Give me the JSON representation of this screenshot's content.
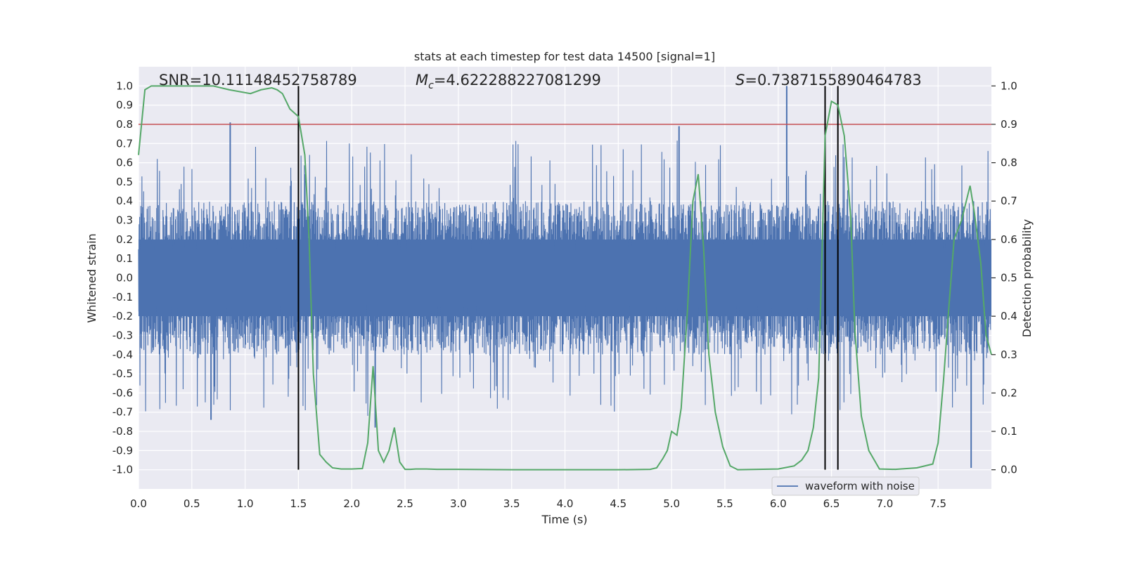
{
  "chart_data": {
    "type": "line",
    "title": "stats at each timestep for test data 14500 [signal=1]",
    "xlabel": "Time (s)",
    "ylabel": "Whitened strain",
    "y2label": "Detection probability",
    "xlim": [
      0.0,
      8.0
    ],
    "ylim": [
      -1.1,
      1.1
    ],
    "y2lim": [
      -0.05,
      1.05
    ],
    "xticks": [
      "0.0",
      "0.5",
      "1.0",
      "1.5",
      "2.0",
      "2.5",
      "3.0",
      "3.5",
      "4.0",
      "4.5",
      "5.0",
      "5.5",
      "6.0",
      "6.5",
      "7.0",
      "7.5"
    ],
    "yticks": [
      "1.0",
      "0.9",
      "0.8",
      "0.7",
      "0.6",
      "0.5",
      "0.4",
      "0.3",
      "0.2",
      "0.1",
      "0.0",
      "-0.1",
      "-0.2",
      "-0.3",
      "-0.4",
      "-0.5",
      "-0.6",
      "-0.7",
      "-0.8",
      "-0.9",
      "-1.0"
    ],
    "y2ticks": [
      "1.0",
      "0.9",
      "0.8",
      "0.7",
      "0.6",
      "0.5",
      "0.4",
      "0.3",
      "0.2",
      "0.1",
      "0.0"
    ],
    "annotations": {
      "snr_text": "SNR=10.11148452758789",
      "mc_symbol": "M",
      "mc_subscript": "c",
      "mc_value": "=4.622288227081299",
      "s_symbol": "S",
      "s_value": "=0.7387155890464783"
    },
    "threshold": {
      "y": 0.8,
      "color": "#c44e52"
    },
    "vertical_lines": [
      1.5,
      6.44,
      6.56
    ],
    "legend": {
      "label": "waveform with noise",
      "location": "lower-right"
    },
    "series": [
      {
        "name": "waveform with noise",
        "axis": "left",
        "color": "#4c72b0",
        "envelope": {
          "typical_upper": 0.4,
          "typical_lower": -0.4,
          "median_extreme": 0.5
        },
        "notable_peaks": [
          {
            "x": 0.86,
            "y": 0.81
          },
          {
            "x": 1.56,
            "y": 0.54
          },
          {
            "x": 5.07,
            "y": 0.79
          },
          {
            "x": 6.08,
            "y": 1.0
          },
          {
            "x": 0.68,
            "y": -0.74
          },
          {
            "x": 2.22,
            "y": -0.78
          },
          {
            "x": 7.81,
            "y": -0.99
          }
        ]
      },
      {
        "name": "detection probability",
        "axis": "right",
        "color": "#55a868",
        "x": [
          0.0,
          0.06,
          0.12,
          0.5,
          0.7,
          0.85,
          1.05,
          1.15,
          1.25,
          1.3,
          1.35,
          1.42,
          1.5,
          1.56,
          1.6,
          1.64,
          1.7,
          1.76,
          1.82,
          1.9,
          2.0,
          2.1,
          2.15,
          2.2,
          2.25,
          2.3,
          2.35,
          2.4,
          2.45,
          2.5,
          2.55,
          2.6,
          2.7,
          2.8,
          3.0,
          3.5,
          4.0,
          4.5,
          4.8,
          4.86,
          4.92,
          4.96,
          5.0,
          5.05,
          5.09,
          5.15,
          5.2,
          5.25,
          5.3,
          5.35,
          5.41,
          5.48,
          5.55,
          5.62,
          6.0,
          6.15,
          6.22,
          6.28,
          6.33,
          6.38,
          6.44,
          6.5,
          6.56,
          6.62,
          6.68,
          6.72,
          6.78,
          6.85,
          6.95,
          7.1,
          7.3,
          7.45,
          7.5,
          7.55,
          7.6,
          7.65,
          7.72,
          7.8,
          7.84,
          7.9,
          7.95,
          8.0
        ],
        "y": [
          0.82,
          0.99,
          1.0,
          1.0,
          1.0,
          0.99,
          0.98,
          0.99,
          0.995,
          0.99,
          0.98,
          0.94,
          0.92,
          0.82,
          0.6,
          0.25,
          0.04,
          0.02,
          0.005,
          0.002,
          0.002,
          0.003,
          0.07,
          0.27,
          0.05,
          0.02,
          0.05,
          0.11,
          0.02,
          0.001,
          0.001,
          0.002,
          0.002,
          0.001,
          0.001,
          0.0,
          0.0,
          0.0,
          0.001,
          0.005,
          0.03,
          0.05,
          0.1,
          0.09,
          0.16,
          0.42,
          0.7,
          0.77,
          0.58,
          0.3,
          0.15,
          0.06,
          0.01,
          0.0,
          0.002,
          0.01,
          0.025,
          0.05,
          0.11,
          0.24,
          0.87,
          0.96,
          0.95,
          0.87,
          0.66,
          0.36,
          0.14,
          0.05,
          0.002,
          0.001,
          0.005,
          0.015,
          0.07,
          0.23,
          0.42,
          0.6,
          0.65,
          0.74,
          0.67,
          0.54,
          0.35,
          0.3
        ]
      }
    ]
  }
}
